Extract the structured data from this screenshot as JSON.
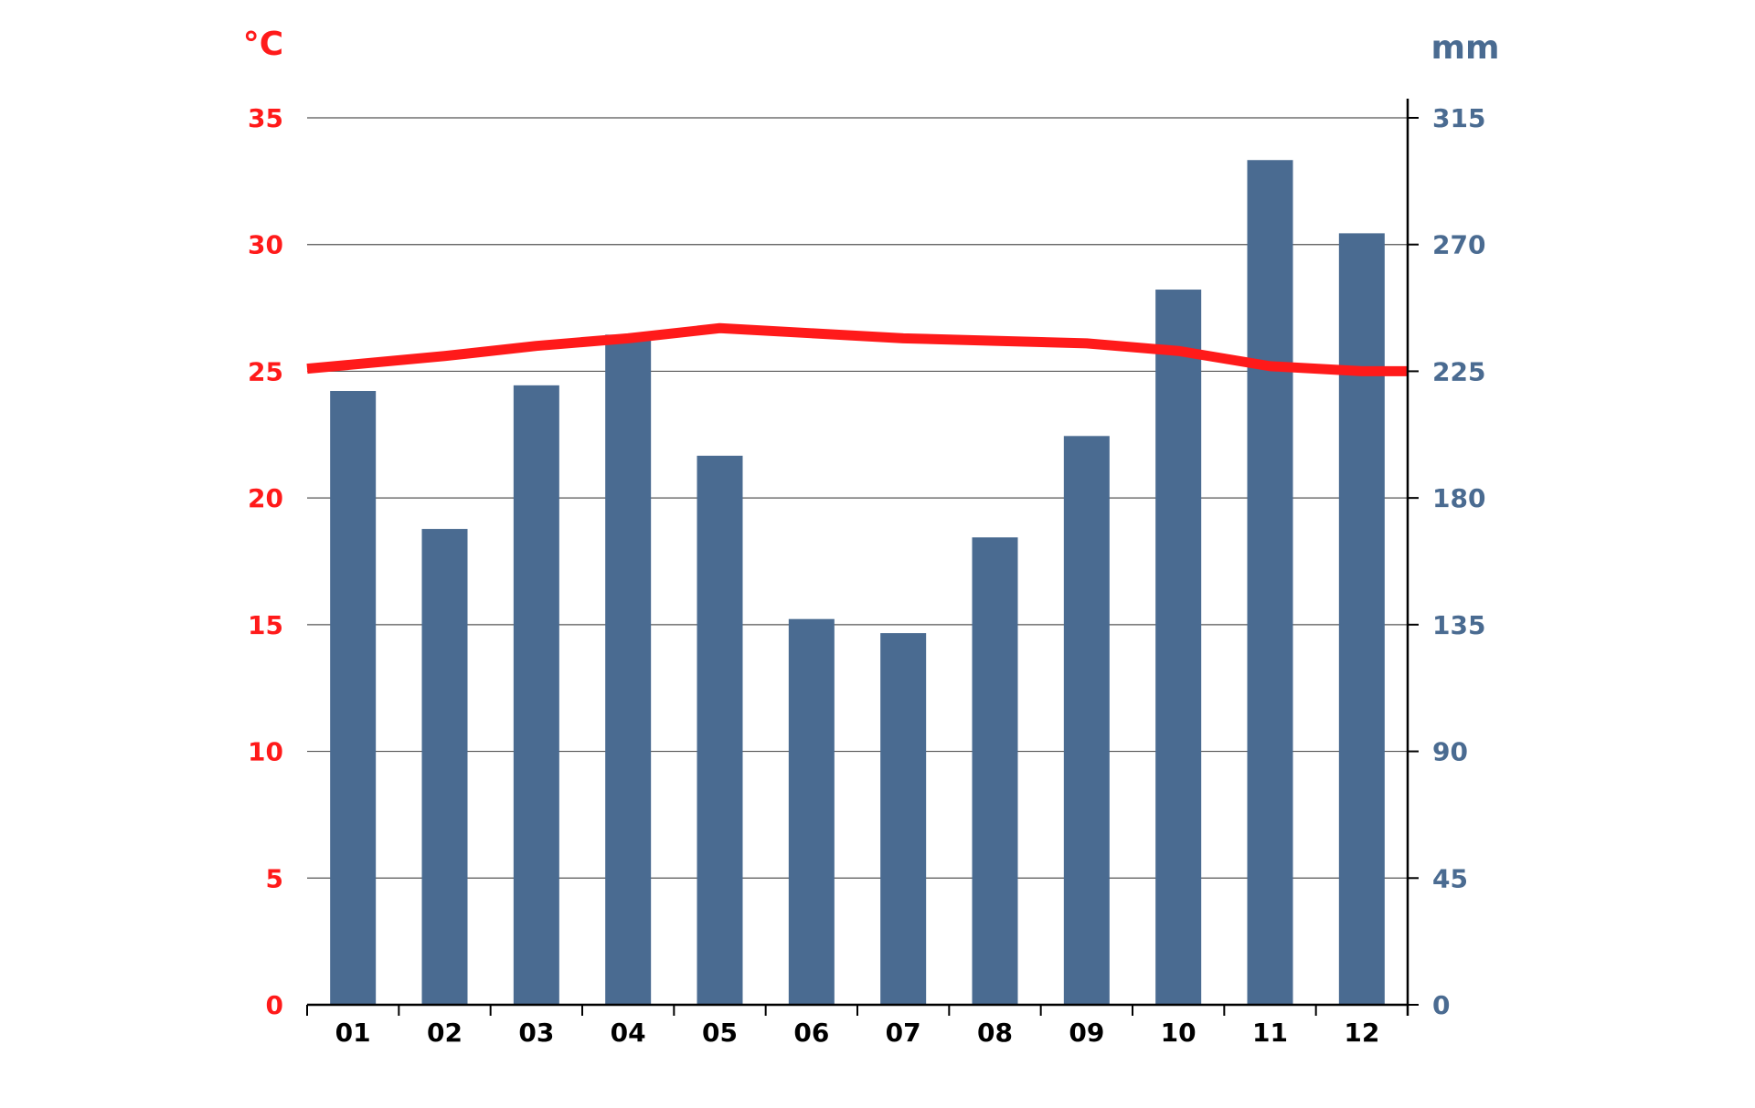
{
  "chart_data": {
    "type": "bar",
    "categories": [
      "01",
      "02",
      "03",
      "04",
      "05",
      "06",
      "07",
      "08",
      "09",
      "10",
      "11",
      "12"
    ],
    "series": [
      {
        "type": "bar",
        "axis": "right",
        "values": [
          218,
          169,
          220,
          238,
          195,
          137,
          132,
          166,
          202,
          254,
          300,
          274
        ]
      },
      {
        "type": "line",
        "axis": "left",
        "values": [
          25.1,
          25.6,
          26.0,
          26.3,
          26.7,
          26.5,
          26.3,
          26.2,
          26.1,
          25.8,
          25.2,
          25.0
        ]
      }
    ],
    "y_left": {
      "unit": "°C",
      "ticks": [
        "0",
        "5",
        "10",
        "15",
        "20",
        "25",
        "30",
        "35"
      ],
      "ylim": [
        0,
        35
      ]
    },
    "y_right": {
      "unit": "mm",
      "ticks": [
        "0",
        "45",
        "90",
        "135",
        "180",
        "225",
        "270",
        "315"
      ],
      "ylim": [
        0,
        315
      ]
    },
    "grid": true,
    "colors": {
      "temperature": "#ff1a1a",
      "precipitation": "#4a6b91",
      "axis": "#000000",
      "grid": "#555555"
    }
  }
}
